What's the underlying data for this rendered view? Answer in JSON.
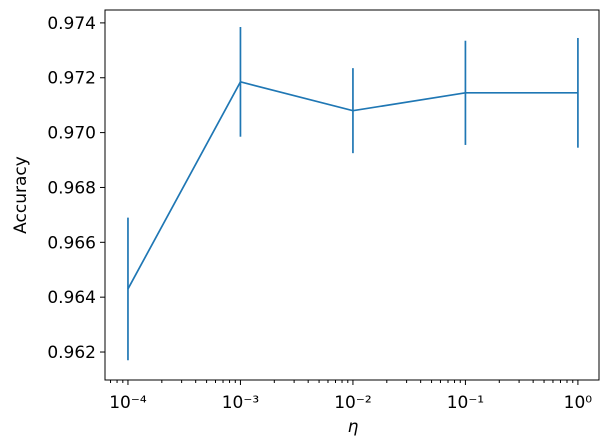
{
  "chart_data": {
    "type": "errorbar-line",
    "x": [
      0.0001,
      0.001,
      0.01,
      0.1,
      1
    ],
    "values": [
      0.9643,
      0.97185,
      0.9708,
      0.97145,
      0.97145
    ],
    "errors": [
      0.0026,
      0.002,
      0.00155,
      0.0019,
      0.002
    ],
    "color": "#1f77b4",
    "xlabel": "η",
    "ylabel": "Accuracy",
    "xscale": "log",
    "xlim": [
      6.25e-05,
      1.54
    ],
    "xticks": [
      {
        "value": 0.0001,
        "label": "10⁻⁴"
      },
      {
        "value": 0.001,
        "label": "10⁻³"
      },
      {
        "value": 0.01,
        "label": "10⁻²"
      },
      {
        "value": 0.1,
        "label": "10⁻¹"
      },
      {
        "value": 1,
        "label": "10⁰"
      }
    ],
    "ylim": [
      0.96098,
      0.97447
    ],
    "yticks": [
      0.962,
      0.964,
      0.966,
      0.968,
      {
        "value": 0.97,
        "label": "0.970"
      },
      0.972,
      0.974
    ],
    "grid": false
  }
}
